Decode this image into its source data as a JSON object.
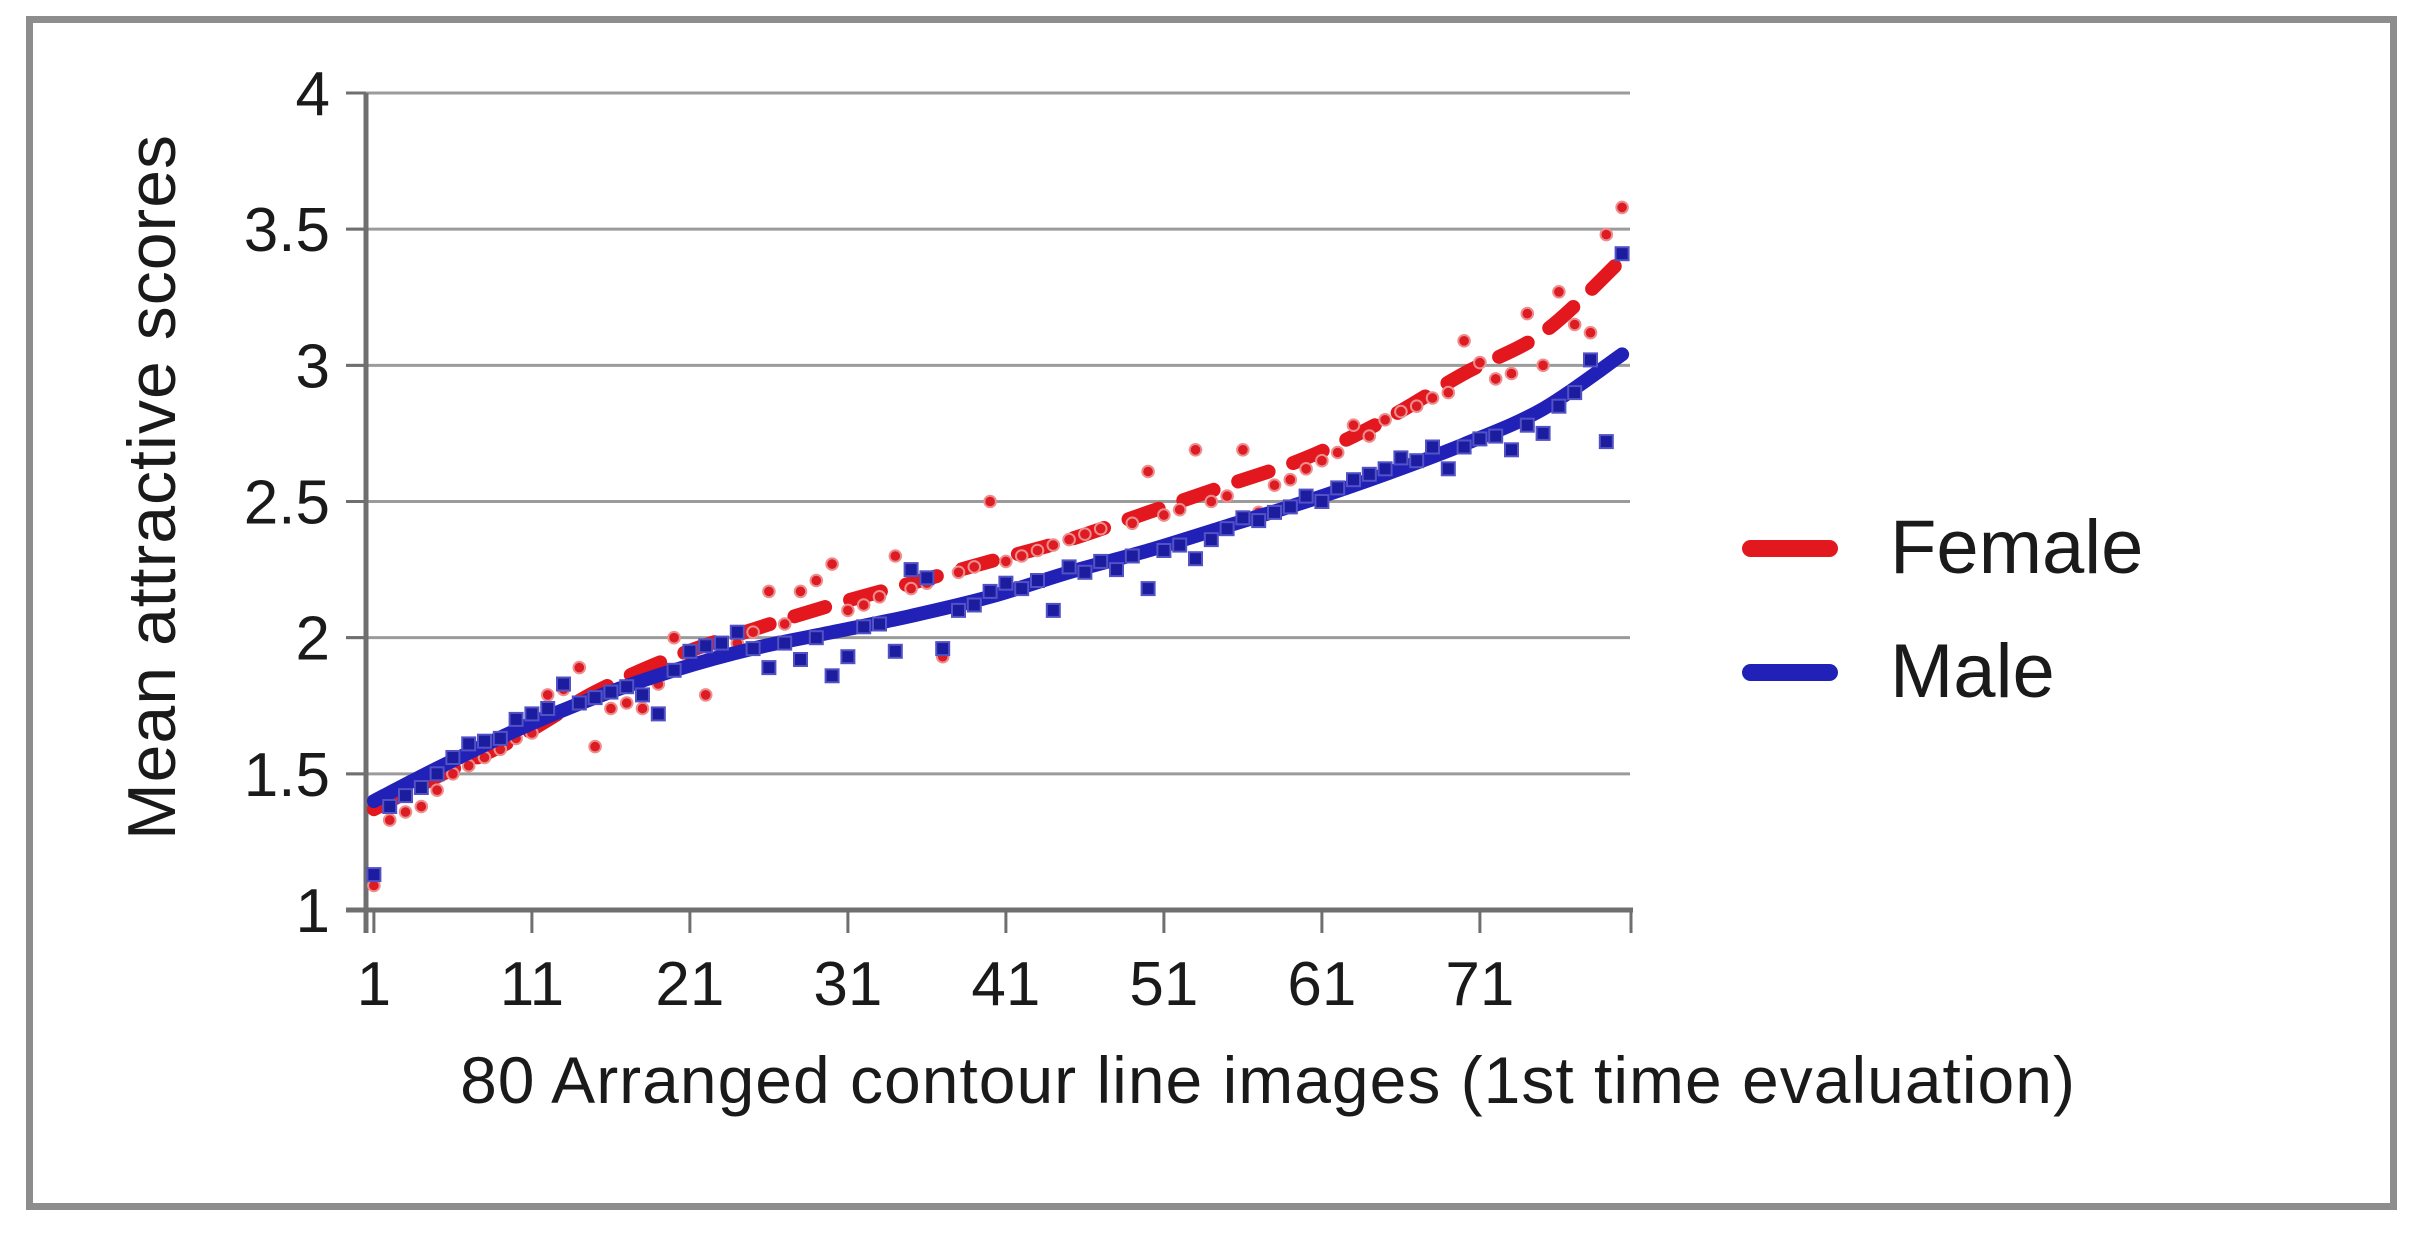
{
  "figure": {
    "background": "#ffffff",
    "border_color": "#8d8d8d",
    "grid_color": "#9b9b9b",
    "axis_color": "#6f6f6f",
    "text_color": "#1a1a1a"
  },
  "chart_data": {
    "type": "scatter",
    "title": "",
    "xlabel": "80 Arranged contour line images (1st time evaluation)",
    "ylabel": "Mean attractive scores",
    "xlim": [
      0.5,
      80.5
    ],
    "ylim": [
      1,
      4
    ],
    "grid": "horizontal",
    "legend_position": "right-center",
    "x_ticks": [
      "1",
      "11",
      "21",
      "31",
      "41",
      "51",
      "61",
      "71"
    ],
    "x_tick_values": [
      1,
      11,
      21,
      31,
      41,
      51,
      61,
      71
    ],
    "y_ticks": [
      "4",
      "3.5",
      "3",
      "2.5",
      "2",
      "1.5",
      "1"
    ],
    "y_tick_values": [
      4,
      3.5,
      3,
      2.5,
      2,
      1.5,
      1
    ],
    "y_gridline_values": [
      1.5,
      2,
      2.5,
      3,
      3.5,
      4
    ],
    "series": [
      {
        "name": "Female",
        "color": "#dc1b22",
        "marker": "circle",
        "trendline": "dashed",
        "values": [
          1.09,
          1.33,
          1.36,
          1.38,
          1.44,
          1.5,
          1.53,
          1.56,
          1.59,
          1.63,
          1.65,
          1.79,
          1.81,
          1.89,
          1.6,
          1.74,
          1.76,
          1.74,
          1.83,
          2.0,
          1.92,
          1.79,
          1.95,
          1.98,
          2.02,
          2.17,
          2.05,
          2.17,
          2.21,
          2.27,
          2.1,
          2.12,
          2.15,
          2.3,
          2.18,
          2.2,
          1.93,
          2.24,
          2.26,
          2.5,
          2.28,
          2.3,
          2.32,
          2.34,
          2.36,
          2.38,
          2.4,
          2.28,
          2.42,
          2.61,
          2.45,
          2.47,
          2.69,
          2.5,
          2.52,
          2.69,
          2.46,
          2.56,
          2.58,
          2.62,
          2.65,
          2.68,
          2.78,
          2.74,
          2.8,
          2.83,
          2.85,
          2.88,
          2.9,
          3.09,
          3.01,
          2.95,
          2.97,
          3.19,
          3.0,
          3.27,
          3.15,
          3.12,
          3.48,
          3.58
        ],
        "trend_anchors": [
          [
            1,
            1.37
          ],
          [
            5,
            1.49
          ],
          [
            10,
            1.63
          ],
          [
            15,
            1.8
          ],
          [
            20,
            1.93
          ],
          [
            25,
            2.03
          ],
          [
            30,
            2.12
          ],
          [
            35,
            2.2
          ],
          [
            40,
            2.28
          ],
          [
            45,
            2.36
          ],
          [
            50,
            2.46
          ],
          [
            55,
            2.56
          ],
          [
            60,
            2.66
          ],
          [
            65,
            2.8
          ],
          [
            70,
            2.97
          ],
          [
            75,
            3.12
          ],
          [
            80,
            3.39
          ]
        ]
      },
      {
        "name": "Male",
        "color": "#1d1da8",
        "marker": "square",
        "trendline": "solid",
        "values": [
          1.13,
          1.38,
          1.42,
          1.45,
          1.5,
          1.56,
          1.61,
          1.62,
          1.63,
          1.7,
          1.72,
          1.74,
          1.83,
          1.76,
          1.78,
          1.8,
          1.82,
          1.79,
          1.72,
          1.88,
          1.95,
          1.97,
          1.98,
          2.02,
          1.96,
          1.89,
          1.98,
          1.92,
          2.0,
          1.86,
          1.93,
          2.04,
          2.05,
          1.95,
          2.25,
          2.22,
          1.96,
          2.1,
          2.12,
          2.17,
          2.2,
          2.18,
          2.21,
          2.1,
          2.26,
          2.24,
          2.28,
          2.25,
          2.3,
          2.18,
          2.32,
          2.34,
          2.29,
          2.36,
          2.4,
          2.44,
          2.43,
          2.46,
          2.48,
          2.52,
          2.5,
          2.55,
          2.58,
          2.6,
          2.62,
          2.66,
          2.65,
          2.7,
          2.62,
          2.7,
          2.73,
          2.74,
          2.69,
          2.78,
          2.75,
          2.85,
          2.9,
          3.02,
          2.72,
          3.41
        ],
        "trend_anchors": [
          [
            1,
            1.4
          ],
          [
            5,
            1.52
          ],
          [
            10,
            1.66
          ],
          [
            15,
            1.78
          ],
          [
            20,
            1.88
          ],
          [
            25,
            1.96
          ],
          [
            30,
            2.02
          ],
          [
            35,
            2.08
          ],
          [
            40,
            2.15
          ],
          [
            45,
            2.24
          ],
          [
            50,
            2.32
          ],
          [
            55,
            2.41
          ],
          [
            60,
            2.5
          ],
          [
            65,
            2.6
          ],
          [
            70,
            2.71
          ],
          [
            75,
            2.84
          ],
          [
            80,
            3.04
          ]
        ]
      }
    ],
    "trend_colors": {
      "female": "#e3171e",
      "male": "#2121b8"
    }
  }
}
